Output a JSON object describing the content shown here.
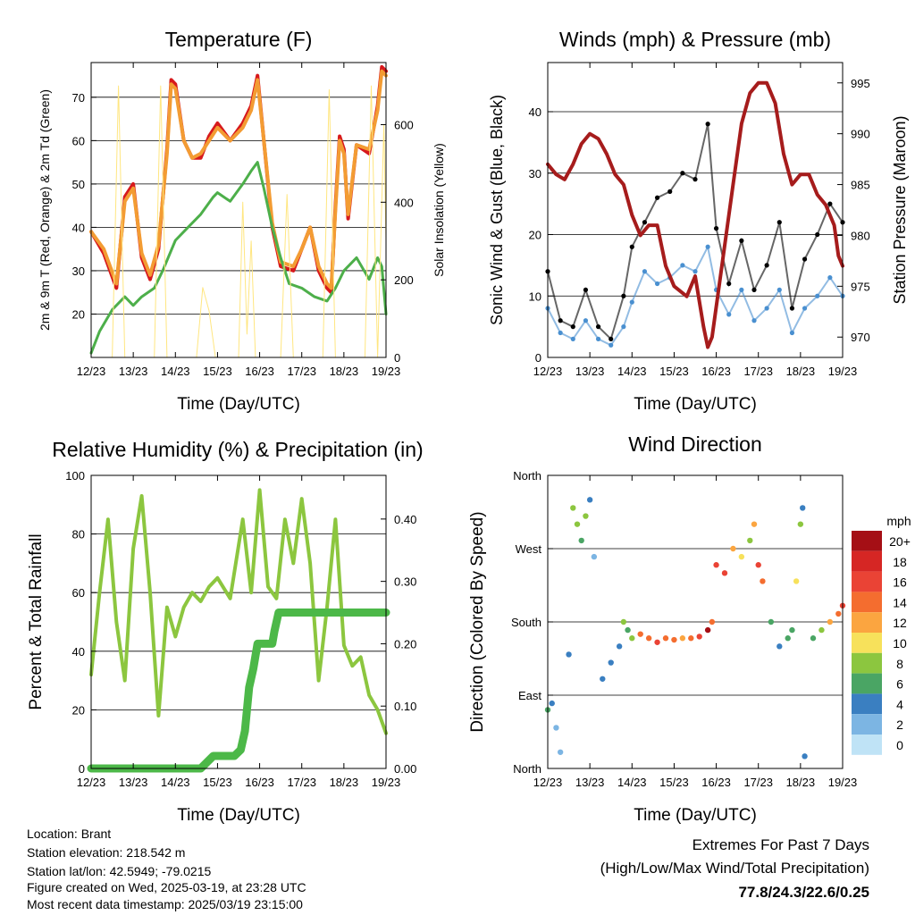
{
  "chart_data": [
    {
      "type": "line",
      "title": "Temperature (F)",
      "xlabel": "Time (Day/UTC)",
      "ylabel": "2m & 9m T (Red, Orange) & 2m Td (Green)",
      "ylabel_right": "Solar Insolation (Yellow)",
      "x_ticks": [
        "12/23",
        "13/23",
        "14/23",
        "15/23",
        "16/23",
        "17/23",
        "18/23",
        "19/23"
      ],
      "xlim": [
        12,
        19
      ],
      "ylim": [
        10,
        78
      ],
      "y_ticks": [
        20,
        30,
        40,
        50,
        60,
        70
      ],
      "ylim_right": [
        0,
        760
      ],
      "y_ticks_right": [
        0,
        200,
        400,
        600
      ],
      "grid": true,
      "series": [
        {
          "name": "2m T",
          "color": "#d7191c",
          "x": [
            12.0,
            12.3,
            12.6,
            12.8,
            13.0,
            13.2,
            13.4,
            13.6,
            13.8,
            13.9,
            14.0,
            14.2,
            14.4,
            14.6,
            14.8,
            15.0,
            15.3,
            15.6,
            15.8,
            15.95,
            16.1,
            16.3,
            16.5,
            16.8,
            17.0,
            17.2,
            17.4,
            17.6,
            17.7,
            17.8,
            17.9,
            18.0,
            18.1,
            18.3,
            18.6,
            18.8,
            18.9,
            19.0
          ],
          "y": [
            39,
            34,
            26,
            47,
            50,
            33,
            28,
            35,
            58,
            74,
            73,
            60,
            56,
            56,
            61,
            64,
            60,
            64,
            68,
            75,
            60,
            40,
            31,
            30,
            35,
            40,
            30,
            26,
            25,
            45,
            61,
            58,
            42,
            59,
            57,
            68,
            77,
            76
          ]
        },
        {
          "name": "9m T",
          "color": "#f39c33",
          "x": [
            12.0,
            12.3,
            12.6,
            12.8,
            13.0,
            13.2,
            13.4,
            13.6,
            13.8,
            13.9,
            14.0,
            14.2,
            14.4,
            14.6,
            14.8,
            15.0,
            15.3,
            15.6,
            15.8,
            15.95,
            16.1,
            16.3,
            16.5,
            16.8,
            17.0,
            17.2,
            17.4,
            17.6,
            17.7,
            17.8,
            17.9,
            18.0,
            18.1,
            18.3,
            18.6,
            18.8,
            18.9,
            19.0
          ],
          "y": [
            39,
            35,
            27,
            46,
            49,
            34,
            29,
            36,
            57,
            73,
            72,
            60,
            56,
            57,
            60,
            63,
            60,
            63,
            67,
            74,
            60,
            41,
            32,
            31,
            35,
            40,
            31,
            27,
            26,
            44,
            60,
            57,
            43,
            59,
            58,
            67,
            76,
            75
          ]
        },
        {
          "name": "2m Td",
          "color": "#4daf4a",
          "x": [
            12.0,
            12.2,
            12.5,
            12.8,
            13.0,
            13.2,
            13.5,
            13.7,
            14.0,
            14.3,
            14.6,
            14.9,
            15.0,
            15.3,
            15.6,
            15.8,
            15.95,
            16.1,
            16.3,
            16.5,
            16.7,
            17.0,
            17.3,
            17.6,
            17.8,
            18.0,
            18.3,
            18.6,
            18.8,
            18.9,
            19.0
          ],
          "y": [
            11,
            16,
            21,
            24,
            22,
            24,
            26,
            30,
            37,
            40,
            43,
            47,
            48,
            46,
            50,
            53,
            55,
            49,
            40,
            33,
            27,
            26,
            24,
            23,
            26,
            30,
            33,
            28,
            33,
            31,
            20
          ]
        },
        {
          "name": "Solar Insolation",
          "color": "#ffe680",
          "axis": "right",
          "x": [
            12.0,
            12.5,
            12.65,
            12.8,
            12.95,
            13.1,
            13.5,
            13.65,
            13.8,
            13.95,
            14.1,
            14.5,
            14.65,
            14.8,
            14.95,
            15.1,
            15.5,
            15.6,
            15.7,
            15.8,
            15.9,
            16.0,
            16.5,
            16.65,
            16.8,
            16.95,
            17.1,
            17.5,
            17.65,
            17.8,
            17.95,
            18.1,
            18.5,
            18.65,
            18.8,
            18.95,
            19.0
          ],
          "y": [
            0,
            0,
            700,
            0,
            0,
            0,
            0,
            700,
            0,
            0,
            0,
            0,
            180,
            120,
            0,
            0,
            0,
            400,
            60,
            300,
            0,
            0,
            0,
            420,
            0,
            0,
            0,
            0,
            690,
            0,
            0,
            0,
            0,
            700,
            0,
            600,
            300
          ]
        }
      ]
    },
    {
      "type": "scatter",
      "title": "Winds (mph) & Pressure (mb)",
      "xlabel": "Time (Day/UTC)",
      "ylabel": "Sonic Wind & Gust (Blue, Black)",
      "ylabel_right": "Station Pressure (Maroon)",
      "x_ticks": [
        "12/23",
        "13/23",
        "14/23",
        "15/23",
        "16/23",
        "17/23",
        "18/23",
        "19/23"
      ],
      "xlim": [
        12,
        19
      ],
      "ylim": [
        0,
        48
      ],
      "y_ticks": [
        0,
        10,
        20,
        30,
        40
      ],
      "ylim_right": [
        968,
        997
      ],
      "y_ticks_right": [
        970,
        975,
        980,
        985,
        990,
        995
      ],
      "grid": true,
      "series": [
        {
          "name": "Sonic Wind",
          "color": "#4a90d0",
          "x": [
            12.0,
            12.3,
            12.6,
            12.9,
            13.2,
            13.5,
            13.8,
            14.0,
            14.3,
            14.6,
            14.9,
            15.2,
            15.5,
            15.8,
            16.0,
            16.3,
            16.6,
            16.9,
            17.2,
            17.5,
            17.8,
            18.1,
            18.4,
            18.7,
            19.0
          ],
          "y": [
            8,
            4,
            3,
            6,
            3,
            2,
            5,
            9,
            14,
            12,
            13,
            15,
            14,
            18,
            11,
            7,
            11,
            6,
            8,
            11,
            4,
            8,
            10,
            13,
            10
          ]
        },
        {
          "name": "Gust",
          "color": "#000000",
          "x": [
            12.0,
            12.3,
            12.6,
            12.9,
            13.2,
            13.5,
            13.8,
            14.0,
            14.3,
            14.6,
            14.9,
            15.2,
            15.5,
            15.8,
            16.0,
            16.3,
            16.6,
            16.9,
            17.2,
            17.5,
            17.8,
            18.1,
            18.4,
            18.7,
            19.0
          ],
          "y": [
            14,
            6,
            5,
            11,
            5,
            3,
            10,
            18,
            22,
            26,
            27,
            30,
            29,
            38,
            21,
            12,
            19,
            11,
            15,
            22,
            8,
            16,
            20,
            25,
            22
          ]
        },
        {
          "name": "Station Pressure",
          "color": "#a61c1c",
          "axis": "right",
          "x": [
            12.0,
            12.2,
            12.4,
            12.6,
            12.8,
            13.0,
            13.2,
            13.4,
            13.6,
            13.8,
            14.0,
            14.2,
            14.4,
            14.6,
            14.8,
            15.0,
            15.3,
            15.5,
            15.7,
            15.8,
            15.9,
            16.1,
            16.4,
            16.6,
            16.8,
            17.0,
            17.2,
            17.4,
            17.6,
            17.8,
            18.0,
            18.2,
            18.4,
            18.6,
            18.8,
            18.9,
            19.0
          ],
          "y": [
            987,
            986,
            985.5,
            987,
            989,
            990,
            989.5,
            988,
            986,
            985,
            982,
            980,
            981,
            981,
            977,
            975,
            974,
            976,
            971,
            969,
            970,
            976,
            985,
            991,
            994,
            995,
            995,
            993,
            988,
            985,
            986,
            986,
            984,
            983,
            981,
            978,
            977
          ]
        }
      ]
    },
    {
      "type": "line",
      "title": "Relative Humidity (%) & Precipitation (in)",
      "xlabel": "Time (Day/UTC)",
      "ylabel": "Percent & Total Rainfall",
      "x_ticks": [
        "12/23",
        "13/23",
        "14/23",
        "15/23",
        "16/23",
        "17/23",
        "18/23",
        "19/23"
      ],
      "xlim": [
        12,
        19
      ],
      "ylim": [
        0,
        100
      ],
      "y_ticks": [
        0,
        20,
        40,
        60,
        80,
        100
      ],
      "ylim_right": [
        0,
        0.47
      ],
      "y_ticks_right": [
        "0.00",
        "0.10",
        "0.20",
        "0.30",
        "0.40"
      ],
      "grid": true,
      "series": [
        {
          "name": "Relative Humidity",
          "color": "#8cc63f",
          "x": [
            12.0,
            12.2,
            12.4,
            12.6,
            12.8,
            13.0,
            13.2,
            13.4,
            13.6,
            13.8,
            14.0,
            14.2,
            14.4,
            14.6,
            14.8,
            15.0,
            15.3,
            15.6,
            15.8,
            16.0,
            16.2,
            16.4,
            16.6,
            16.8,
            17.0,
            17.2,
            17.4,
            17.6,
            17.8,
            18.0,
            18.2,
            18.4,
            18.6,
            18.8,
            19.0
          ],
          "y": [
            32,
            60,
            85,
            50,
            30,
            75,
            93,
            60,
            18,
            55,
            45,
            55,
            60,
            57,
            62,
            65,
            58,
            85,
            60,
            95,
            62,
            58,
            85,
            70,
            92,
            70,
            30,
            55,
            85,
            42,
            35,
            38,
            25,
            20,
            12
          ]
        },
        {
          "name": "Total Rainfall",
          "color": "#4cb848",
          "axis": "right",
          "x": [
            12.0,
            14.6,
            14.9,
            15.4,
            15.55,
            15.65,
            15.75,
            15.85,
            15.95,
            16.3,
            16.35,
            16.45,
            19.0
          ],
          "y": [
            0,
            0,
            0.02,
            0.02,
            0.03,
            0.06,
            0.13,
            0.16,
            0.2,
            0.2,
            0.22,
            0.25,
            0.25
          ]
        }
      ]
    },
    {
      "type": "scatter",
      "title": "Wind Direction",
      "xlabel": "Time (Day/UTC)",
      "ylabel": "Direction (Colored By Speed)",
      "x_ticks": [
        "12/23",
        "13/23",
        "14/23",
        "15/23",
        "16/23",
        "17/23",
        "18/23",
        "19/23"
      ],
      "xlim": [
        12,
        19
      ],
      "y_ticks": [
        "North",
        "East",
        "South",
        "West",
        "North"
      ],
      "ylim": [
        0,
        360
      ],
      "grid": true,
      "legend": {
        "title": "mph",
        "labels": [
          "20+",
          "18",
          "16",
          "14",
          "12",
          "10",
          "8",
          "6",
          "4",
          "2",
          "0"
        ],
        "colors": [
          "#a50f15",
          "#d62624",
          "#ea4335",
          "#f46d2f",
          "#fba540",
          "#f7e15b",
          "#8cc63f",
          "#4aa564",
          "#3a7fc1",
          "#7cb5e3",
          "#bfe3f6"
        ]
      },
      "points": {
        "x": [
          12.0,
          12.1,
          12.2,
          12.3,
          12.5,
          12.6,
          12.7,
          12.8,
          12.9,
          13.0,
          13.1,
          13.3,
          13.5,
          13.7,
          13.8,
          13.9,
          14.0,
          14.2,
          14.4,
          14.6,
          14.8,
          15.0,
          15.2,
          15.4,
          15.6,
          15.8,
          15.9,
          16.0,
          16.2,
          16.4,
          16.6,
          16.8,
          16.9,
          17.0,
          17.1,
          17.3,
          17.5,
          17.7,
          17.8,
          17.9,
          18.0,
          18.05,
          18.1,
          18.3,
          18.5,
          18.7,
          18.9,
          19.0
        ],
        "y": [
          72,
          80,
          50,
          20,
          140,
          320,
          300,
          280,
          310,
          330,
          260,
          110,
          130,
          150,
          180,
          170,
          160,
          165,
          160,
          155,
          160,
          158,
          160,
          160,
          162,
          170,
          180,
          250,
          240,
          270,
          260,
          280,
          300,
          250,
          230,
          180,
          150,
          160,
          170,
          230,
          300,
          320,
          15,
          160,
          170,
          180,
          190,
          200
        ],
        "speed": [
          5,
          4,
          2,
          2,
          3,
          7,
          8,
          6,
          8,
          4,
          2,
          3,
          3,
          4,
          8,
          6,
          7,
          13,
          14,
          15,
          14,
          13,
          12,
          13,
          16,
          20,
          14,
          16,
          15,
          12,
          10,
          8,
          12,
          16,
          14,
          6,
          4,
          6,
          5,
          10,
          7,
          4,
          3,
          5,
          8,
          12,
          13,
          15
        ]
      }
    }
  ],
  "info": {
    "location": "Location: Brant",
    "elevation": "Station elevation: 218.542 m",
    "latlon": "Station lat/lon: 42.5949; -79.0215",
    "created": "Figure created on Wed, 2025-03-19, at 23:28 UTC",
    "latest": "Most recent data timestamp: 2025/03/19 23:15:00"
  },
  "extremes": {
    "heading": "Extremes For Past 7 Days",
    "subheading": "(High/Low/Max Wind/Total Precipitation)",
    "values": "77.8/24.3/22.6/0.25",
    "values_color": "#c0282d"
  }
}
